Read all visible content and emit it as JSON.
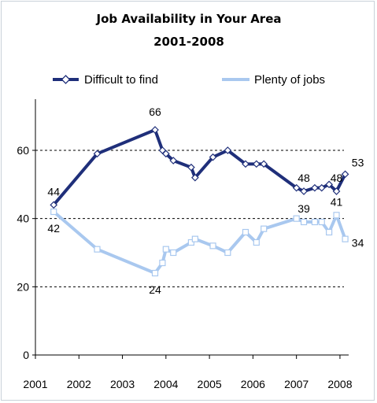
{
  "chart_data": {
    "type": "line",
    "title": "Job Availability in Your Area",
    "subtitle": "2001-2008",
    "xlabel": "",
    "ylabel": "",
    "xlim": [
      2001,
      2008.2
    ],
    "ylim": [
      0,
      75
    ],
    "x_ticks": [
      "2001",
      "2002",
      "2003",
      "2004",
      "2005",
      "2006",
      "2007",
      "2008"
    ],
    "y_ticks": [
      "0",
      "20",
      "40",
      "60"
    ],
    "gridlines_dashed_at": [
      20,
      40,
      60
    ],
    "legend_position": "top",
    "series": [
      {
        "name": "Difficult to find",
        "color": "#1f2f7a",
        "marker": "diamond",
        "x": [
          2001.42,
          2002.42,
          2003.75,
          2003.92,
          2004.0,
          2004.17,
          2004.58,
          2004.67,
          2005.08,
          2005.42,
          2005.83,
          2006.08,
          2006.25,
          2007.0,
          2007.17,
          2007.42,
          2007.58,
          2007.75,
          2007.92,
          2008.12
        ],
        "values": [
          44,
          59,
          66,
          60,
          59,
          57,
          55,
          52,
          58,
          60,
          56,
          56,
          56,
          49,
          48,
          49,
          49,
          50,
          48,
          53
        ]
      },
      {
        "name": "Plenty of jobs",
        "color": "#a9c8ef",
        "marker": "square",
        "x": [
          2001.42,
          2002.42,
          2003.75,
          2003.92,
          2004.0,
          2004.17,
          2004.58,
          2004.67,
          2005.08,
          2005.42,
          2005.83,
          2006.08,
          2006.25,
          2007.0,
          2007.17,
          2007.42,
          2007.58,
          2007.75,
          2007.92,
          2008.12
        ],
        "values": [
          42,
          31,
          24,
          27,
          31,
          30,
          33,
          34,
          32,
          30,
          36,
          33,
          37,
          40,
          39,
          39,
          39,
          36,
          41,
          34
        ]
      }
    ],
    "data_labels": [
      {
        "series": 0,
        "point": 0,
        "text": "44"
      },
      {
        "series": 0,
        "point": 2,
        "text": "66"
      },
      {
        "series": 0,
        "point": 14,
        "text": "48"
      },
      {
        "series": 0,
        "point": 18,
        "text": "48"
      },
      {
        "series": 0,
        "point": 19,
        "text": "53"
      },
      {
        "series": 1,
        "point": 0,
        "text": "42"
      },
      {
        "series": 1,
        "point": 2,
        "text": "24"
      },
      {
        "series": 1,
        "point": 14,
        "text": "39"
      },
      {
        "series": 1,
        "point": 18,
        "text": "41"
      },
      {
        "series": 1,
        "point": 19,
        "text": "34"
      }
    ]
  }
}
